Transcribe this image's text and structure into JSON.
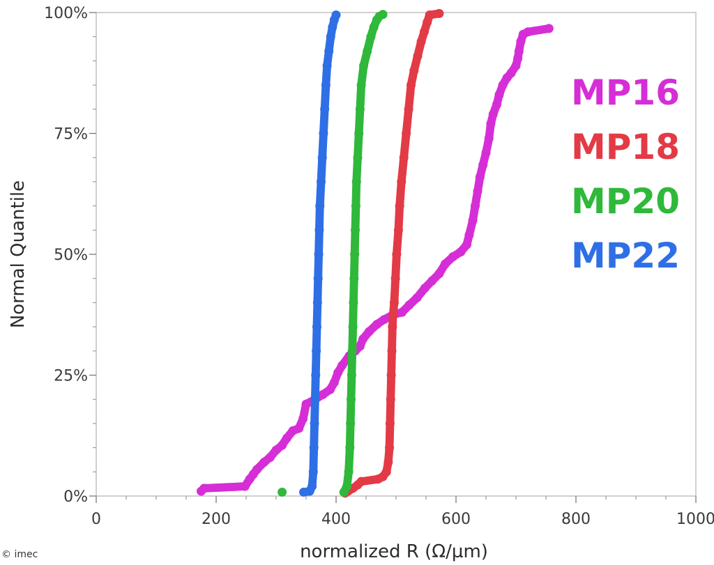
{
  "chart_data": {
    "type": "scatter",
    "xlabel": "normalized R (Ω/µm)",
    "ylabel": "Normal Quantile",
    "xlim": [
      0,
      1000
    ],
    "ylim": [
      0,
      100
    ],
    "x_ticks": [
      0,
      200,
      400,
      600,
      800,
      1000
    ],
    "x_tick_labels": [
      "0",
      "200",
      "400",
      "600",
      "800",
      "1000"
    ],
    "y_ticks": [
      0,
      25,
      50,
      75,
      100
    ],
    "y_tick_labels": [
      "0%",
      "25%",
      "50%",
      "75%",
      "100%"
    ],
    "x_minor_step": 50,
    "y_minor_step": 5,
    "grid": false,
    "legend_position": "right",
    "copyright": "© imec",
    "series": [
      {
        "name": "MP16",
        "color": "#d62ed6",
        "points": [
          [
            175,
            1
          ],
          [
            180,
            1.6
          ],
          [
            248,
            2
          ],
          [
            256,
            3.5
          ],
          [
            262,
            4.5
          ],
          [
            268,
            5.5
          ],
          [
            280,
            7
          ],
          [
            290,
            8
          ],
          [
            300,
            9.5
          ],
          [
            310,
            10.5
          ],
          [
            318,
            12
          ],
          [
            328,
            13.5
          ],
          [
            338,
            14
          ],
          [
            345,
            16
          ],
          [
            350,
            19
          ],
          [
            365,
            20
          ],
          [
            378,
            21
          ],
          [
            390,
            22
          ],
          [
            397,
            23.5
          ],
          [
            403,
            25.5
          ],
          [
            410,
            27
          ],
          [
            422,
            29
          ],
          [
            432,
            30
          ],
          [
            440,
            31
          ],
          [
            445,
            32.5
          ],
          [
            455,
            34
          ],
          [
            468,
            35.5
          ],
          [
            480,
            36.5
          ],
          [
            495,
            37.5
          ],
          [
            510,
            38
          ],
          [
            522,
            39.5
          ],
          [
            535,
            41
          ],
          [
            548,
            43
          ],
          [
            560,
            44.5
          ],
          [
            572,
            46
          ],
          [
            582,
            48
          ],
          [
            595,
            49.5
          ],
          [
            608,
            50.5
          ],
          [
            618,
            52
          ],
          [
            622,
            54
          ],
          [
            628,
            57
          ],
          [
            632,
            60
          ],
          [
            636,
            63
          ],
          [
            640,
            66
          ],
          [
            645,
            68.5
          ],
          [
            650,
            71
          ],
          [
            655,
            74
          ],
          [
            658,
            77
          ],
          [
            662,
            79
          ],
          [
            668,
            81
          ],
          [
            672,
            83
          ],
          [
            678,
            85
          ],
          [
            685,
            86.5
          ],
          [
            692,
            87.5
          ],
          [
            700,
            89
          ],
          [
            703,
            90.5
          ],
          [
            705,
            92
          ],
          [
            708,
            94
          ],
          [
            712,
            95.5
          ],
          [
            720,
            96
          ],
          [
            755,
            96.7
          ]
        ]
      },
      {
        "name": "MP18",
        "color": "#e23b46",
        "points": [
          [
            415,
            0.6
          ],
          [
            420,
            1
          ],
          [
            428,
            1.6
          ],
          [
            436,
            2.3
          ],
          [
            442,
            3
          ],
          [
            470,
            3.5
          ],
          [
            478,
            4
          ],
          [
            484,
            5
          ],
          [
            487,
            7
          ],
          [
            489,
            10
          ],
          [
            490,
            15
          ],
          [
            491,
            20
          ],
          [
            492,
            25
          ],
          [
            493,
            30
          ],
          [
            494,
            35
          ],
          [
            495,
            37.5
          ],
          [
            497,
            40
          ],
          [
            499,
            45
          ],
          [
            501,
            50
          ],
          [
            504,
            55
          ],
          [
            506,
            60
          ],
          [
            509,
            65
          ],
          [
            513,
            70
          ],
          [
            517,
            75
          ],
          [
            521,
            80
          ],
          [
            525,
            85
          ],
          [
            530,
            88
          ],
          [
            536,
            91
          ],
          [
            542,
            94
          ],
          [
            547,
            96
          ],
          [
            552,
            98
          ],
          [
            556,
            99.5
          ],
          [
            572,
            99.8
          ]
        ]
      },
      {
        "name": "MP20",
        "color": "#2fb83a",
        "points": [
          [
            310,
            0.8
          ],
          [
            413,
            0.8
          ],
          [
            418,
            2
          ],
          [
            421,
            5
          ],
          [
            423,
            10
          ],
          [
            424,
            15
          ],
          [
            425,
            20
          ],
          [
            426,
            25
          ],
          [
            427,
            30
          ],
          [
            428,
            35
          ],
          [
            429,
            40
          ],
          [
            430,
            45
          ],
          [
            431,
            50
          ],
          [
            432,
            55
          ],
          [
            433,
            60
          ],
          [
            434,
            65
          ],
          [
            436,
            70
          ],
          [
            438,
            75
          ],
          [
            440,
            80
          ],
          [
            442,
            85
          ],
          [
            446,
            89
          ],
          [
            452,
            92
          ],
          [
            458,
            95
          ],
          [
            463,
            97
          ],
          [
            468,
            98.5
          ],
          [
            472,
            99.2
          ],
          [
            478,
            99.6
          ]
        ]
      },
      {
        "name": "MP22",
        "color": "#2f6fe6",
        "points": [
          [
            346,
            0.8
          ],
          [
            356,
            1
          ],
          [
            360,
            2
          ],
          [
            362,
            5
          ],
          [
            363,
            10
          ],
          [
            364,
            15
          ],
          [
            365,
            20
          ],
          [
            366,
            25
          ],
          [
            367,
            30
          ],
          [
            368,
            35
          ],
          [
            369,
            40
          ],
          [
            370,
            45
          ],
          [
            371,
            50
          ],
          [
            372,
            55
          ],
          [
            373,
            60
          ],
          [
            375,
            65
          ],
          [
            377,
            70
          ],
          [
            379,
            75
          ],
          [
            381,
            80
          ],
          [
            383,
            85
          ],
          [
            385,
            89
          ],
          [
            388,
            92
          ],
          [
            391,
            95
          ],
          [
            394,
            97
          ],
          [
            397,
            98.5
          ],
          [
            400,
            99.5
          ]
        ]
      }
    ]
  }
}
